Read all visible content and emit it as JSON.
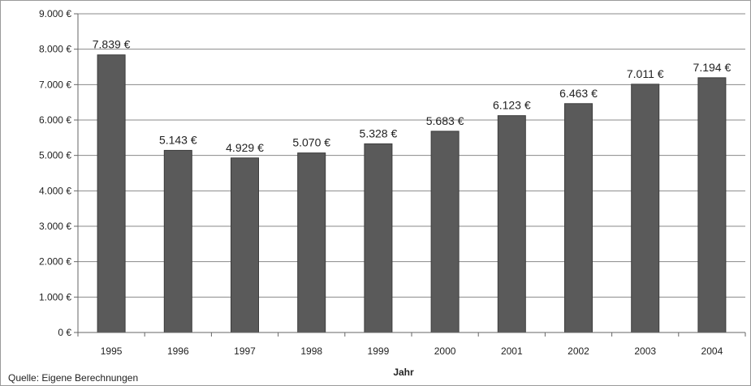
{
  "chart_data": {
    "type": "bar",
    "categories": [
      "1995",
      "1996",
      "1997",
      "1998",
      "1999",
      "2000",
      "2001",
      "2002",
      "2003",
      "2004"
    ],
    "values": [
      7839,
      5143,
      4929,
      5070,
      5328,
      5683,
      6123,
      6463,
      7011,
      7194
    ],
    "data_labels": [
      "7.839 €",
      "5.143 €",
      "4.929 €",
      "5.070 €",
      "5.328 €",
      "5.683 €",
      "6.123 €",
      "6.463 €",
      "7.011 €",
      "7.194 €"
    ],
    "title": "",
    "xlabel": "Jahr",
    "ylabel": "",
    "ylim": [
      0,
      9000
    ],
    "y_ticks": [
      0,
      1000,
      2000,
      3000,
      4000,
      5000,
      6000,
      7000,
      8000,
      9000
    ],
    "y_tick_labels": [
      "0 €",
      "1.000 €",
      "2.000 €",
      "3.000 €",
      "4.000 €",
      "5.000 €",
      "6.000 €",
      "7.000 €",
      "8.000 €",
      "9.000 €"
    ],
    "grid": true,
    "legend": "none",
    "bar_color": "#5a5a5a"
  },
  "source_note": "Quelle: Eigene Berechnungen"
}
